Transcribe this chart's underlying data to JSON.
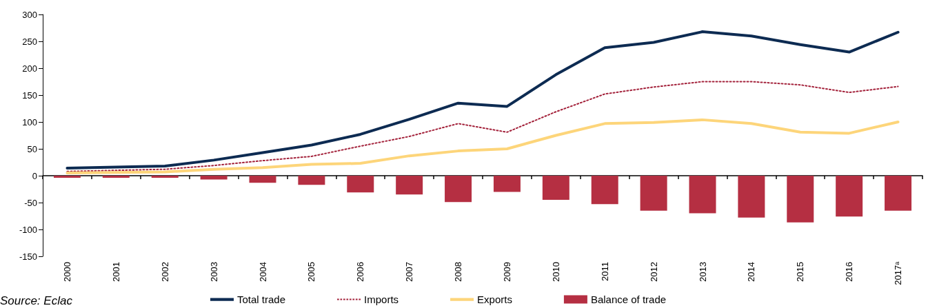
{
  "chart_data": {
    "type": "line",
    "categories": [
      "2000",
      "2001",
      "2002",
      "2003",
      "2004",
      "2005",
      "2006",
      "2007",
      "2008",
      "2009",
      "2010",
      "2011",
      "2012",
      "2013",
      "2014",
      "2015",
      "2016",
      "2017ᵃ"
    ],
    "series": [
      {
        "name": "Total trade",
        "color": "#0d2b52",
        "line_style": "solid",
        "values": [
          14,
          16,
          18,
          29,
          43,
          57,
          77,
          105,
          135,
          129,
          188,
          238,
          248,
          268,
          260,
          244,
          230,
          267
        ]
      },
      {
        "name": "Imports",
        "color": "#a3213a",
        "line_style": "dotted",
        "values": [
          8,
          10,
          12,
          19,
          28,
          36,
          55,
          73,
          97,
          81,
          119,
          152,
          165,
          175,
          175,
          169,
          155,
          166
        ]
      },
      {
        "name": "Exports",
        "color": "#fdd57a",
        "line_style": "solid",
        "values": [
          5,
          6,
          7,
          12,
          15,
          21,
          23,
          37,
          46,
          50,
          75,
          97,
          99,
          104,
          97,
          81,
          79,
          100
        ]
      },
      {
        "name": "Balance of trade",
        "type": "bar",
        "color": "#b52f42",
        "values": [
          -4,
          -4,
          -4,
          -7,
          -13,
          -17,
          -31,
          -35,
          -49,
          -30,
          -45,
          -53,
          -65,
          -70,
          -78,
          -87,
          -76,
          -65
        ]
      }
    ],
    "ylim": [
      -150,
      300
    ],
    "yticks": [
      -150,
      -100,
      -50,
      0,
      50,
      100,
      150,
      200,
      250,
      300
    ],
    "legend": "bottom",
    "marker": "none",
    "annotations": [
      "Source: Eclac"
    ]
  }
}
